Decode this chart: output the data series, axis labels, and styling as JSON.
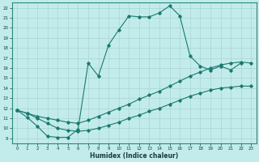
{
  "xlabel": "Humidex (Indice chaleur)",
  "line_color": "#1a7a6e",
  "bg_color": "#c2ecec",
  "grid_color": "#b0d8d8",
  "xlim": [
    -0.5,
    23.5
  ],
  "ylim": [
    8.5,
    22.5
  ],
  "xticks": [
    0,
    1,
    2,
    3,
    4,
    5,
    6,
    7,
    8,
    9,
    10,
    11,
    12,
    13,
    14,
    15,
    16,
    17,
    18,
    19,
    20,
    21,
    22,
    23
  ],
  "yticks": [
    9,
    10,
    11,
    12,
    13,
    14,
    15,
    16,
    17,
    18,
    19,
    20,
    21,
    22
  ],
  "line1_x": [
    0,
    1,
    2,
    3,
    4,
    5,
    6,
    7,
    8,
    9,
    10,
    11,
    12,
    13,
    14,
    15,
    16,
    17,
    18,
    19,
    20,
    21,
    22
  ],
  "line1_y": [
    11.8,
    11.1,
    10.2,
    9.2,
    9.1,
    9.1,
    9.9,
    16.5,
    15.2,
    18.3,
    19.8,
    21.2,
    21.1,
    21.1,
    21.5,
    22.2,
    21.2,
    17.2,
    16.2,
    15.8,
    16.2,
    15.8,
    16.5
  ],
  "line2_x": [
    0,
    1,
    2,
    3,
    4,
    5,
    6,
    7,
    8,
    9,
    10,
    11,
    12,
    13,
    14,
    15,
    16,
    17,
    18,
    19,
    20,
    21,
    22,
    23
  ],
  "line2_y": [
    11.8,
    11.5,
    11.2,
    11.0,
    10.8,
    10.6,
    10.5,
    10.8,
    11.2,
    11.6,
    12.0,
    12.4,
    12.9,
    13.3,
    13.7,
    14.2,
    14.7,
    15.2,
    15.6,
    16.0,
    16.3,
    16.5,
    16.6,
    16.5
  ],
  "line3_x": [
    0,
    1,
    2,
    3,
    4,
    5,
    6,
    7,
    8,
    9,
    10,
    11,
    12,
    13,
    14,
    15,
    16,
    17,
    18,
    19,
    20,
    21,
    22,
    23
  ],
  "line3_y": [
    11.8,
    11.5,
    11.0,
    10.5,
    10.0,
    9.8,
    9.7,
    9.8,
    10.0,
    10.3,
    10.6,
    11.0,
    11.3,
    11.7,
    12.0,
    12.4,
    12.8,
    13.2,
    13.5,
    13.8,
    14.0,
    14.1,
    14.2,
    14.2
  ]
}
